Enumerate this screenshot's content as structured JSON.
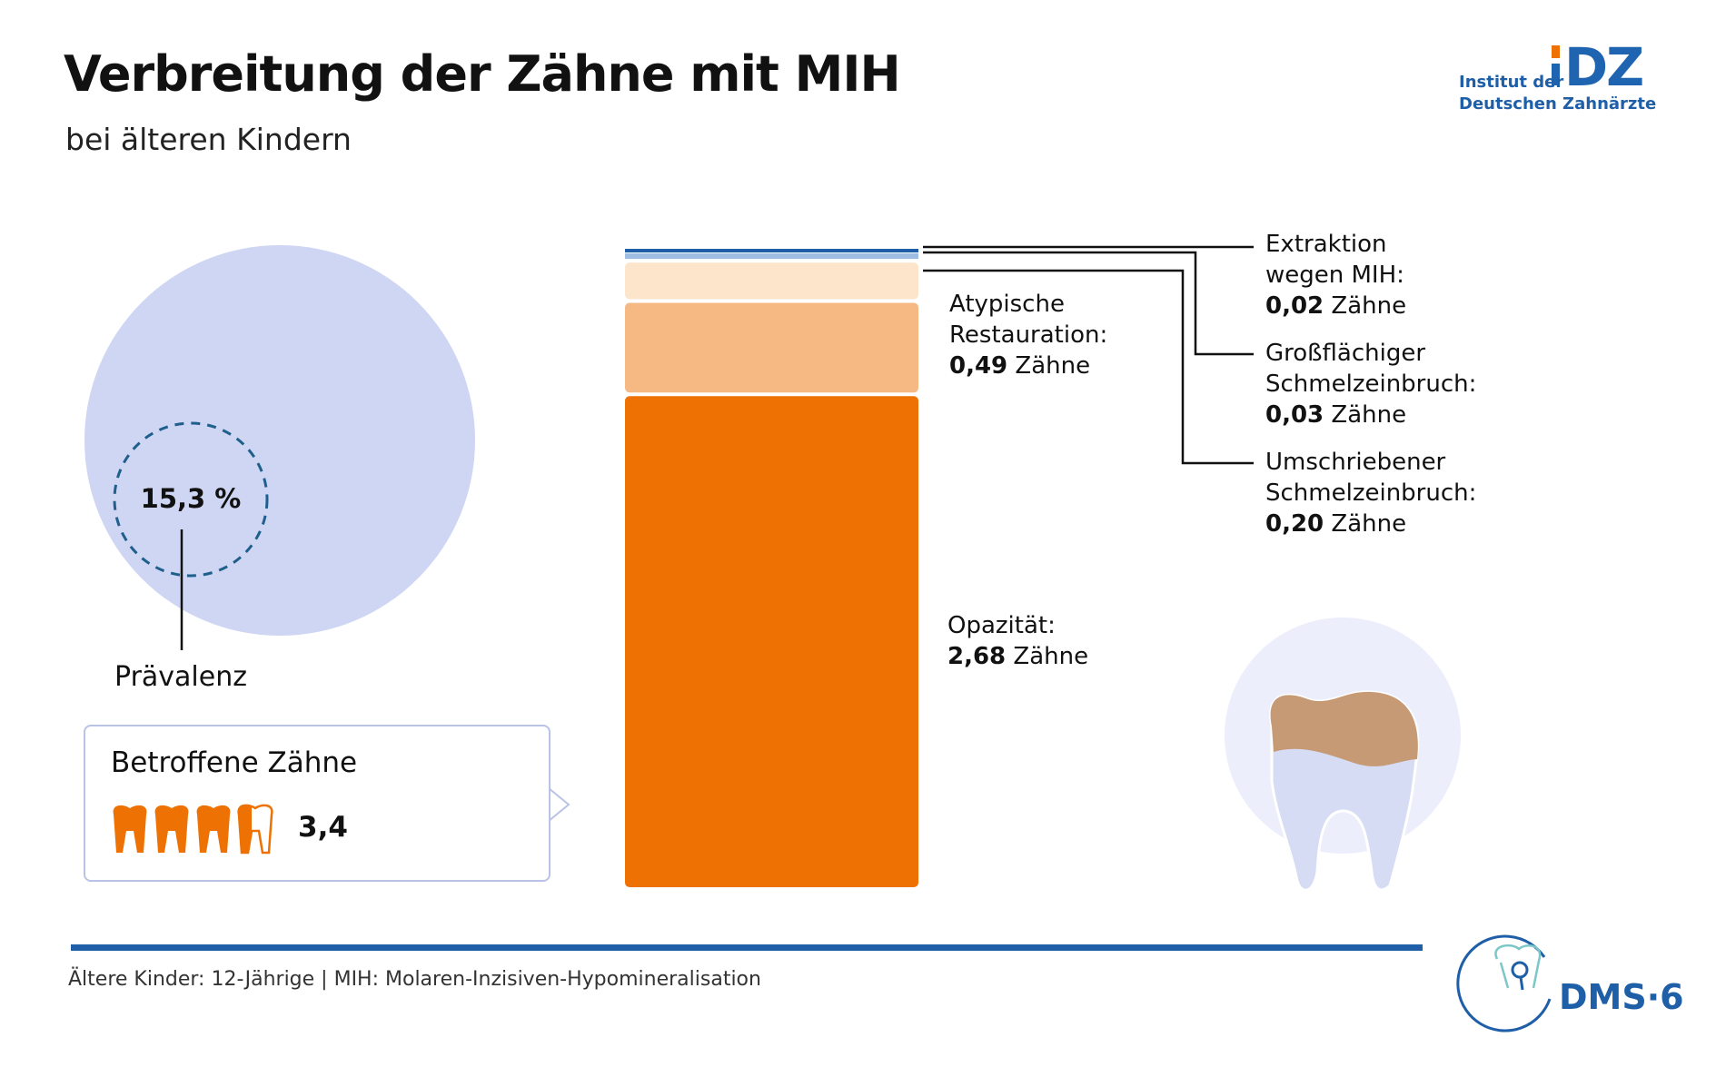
{
  "header": {
    "title": "Verbreitung der Zähne mit MIH",
    "subtitle": "bei älteren Kindern"
  },
  "logo_idz": {
    "line1": "Institut der",
    "line2": "Deutschen Zahnärzte",
    "mark": "IDZ"
  },
  "prevalence": {
    "value": "15,3 %",
    "label": "Prävalenz",
    "fraction": 0.153
  },
  "affected": {
    "title": "Betroffene Zähne",
    "value": "3,4",
    "teeth_count": 3.4
  },
  "chart_data": {
    "type": "bar",
    "stacked": true,
    "unit": "Zähne",
    "series": [
      {
        "name": "Opazität:",
        "value": 2.68,
        "value_label": "2,68",
        "color": "#ee7203"
      },
      {
        "name": "Atypische Restauration:",
        "value": 0.49,
        "value_label": "0,49",
        "color": "#f7b984"
      },
      {
        "name": "Umschriebener Schmelzeinbruch:",
        "value": 0.2,
        "value_label": "0,20",
        "color": "#fde5cc"
      },
      {
        "name": "Großflächiger Schmelzeinbruch:",
        "value": 0.03,
        "value_label": "0,03",
        "color": "#9dbde3"
      },
      {
        "name": "Extraktion wegen MIH:",
        "value": 0.02,
        "value_label": "0,02",
        "color": "#1f5fa8"
      }
    ],
    "labels": {
      "opazitaet": [
        "Opazität:"
      ],
      "atypisch": [
        "Atypische",
        "Restauration:"
      ],
      "umschrieben": [
        "Umschriebener",
        "Schmelzeinbruch:"
      ],
      "grossflaechig": [
        "Großflächiger",
        "Schmelzeinbruch:"
      ],
      "extraktion": [
        "Extraktion",
        "wegen MIH:"
      ]
    }
  },
  "footer": {
    "note": "Ältere Kinder: 12-Jährige | MIH: Molaren-Inzisiven-Hypomineralisation",
    "logo": "DMS·6"
  },
  "colors": {
    "accent_blue": "#1f5fa8",
    "orange": "#ee7203",
    "circle": "#cfd6f3"
  }
}
